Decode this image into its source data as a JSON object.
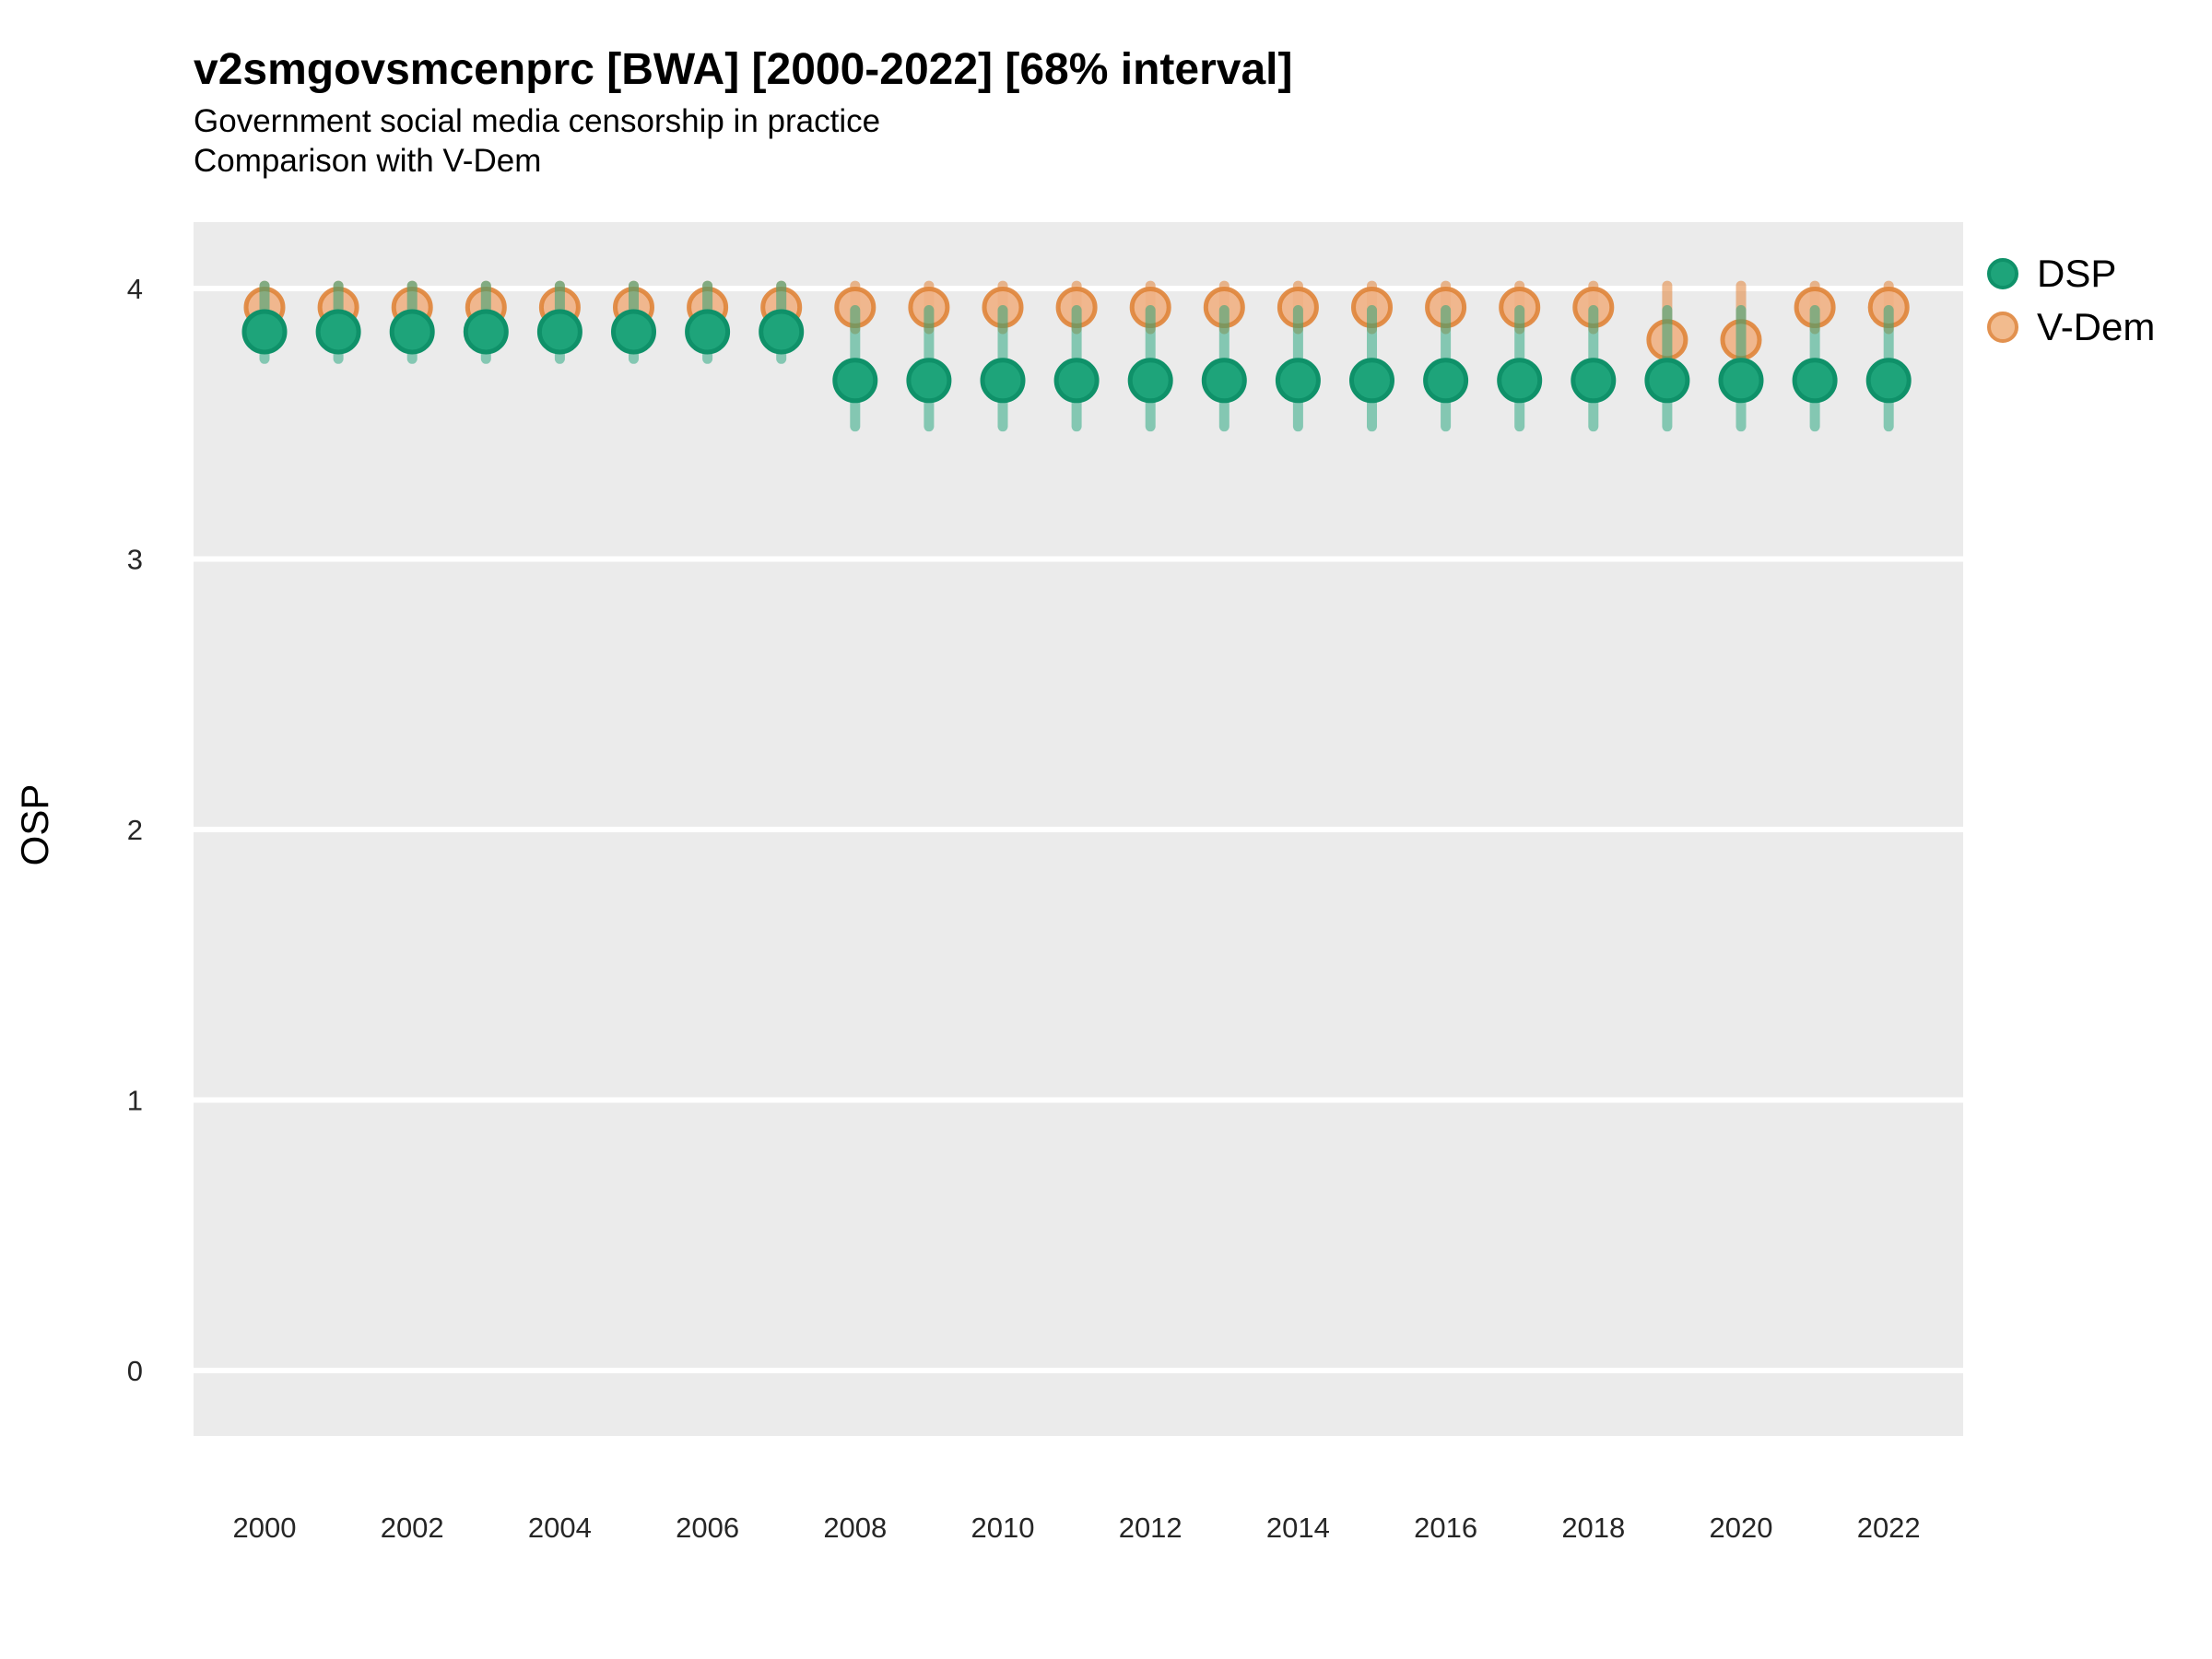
{
  "title": "v2smgovsmcenprc [BWA] [2000-2022] [68% interval]",
  "subtitle1": "Government social media censorship in practice",
  "subtitle2": "Comparison with V-Dem",
  "colors": {
    "panel_background": "#ebebeb",
    "gridline": "#ffffff",
    "dsp_fill": "#1ea47a",
    "dsp_stroke": "#0f9169",
    "dsp_interval": "rgba(30,164,122,0.5)",
    "vdem_fill": "rgba(240,178,134,0.92)",
    "vdem_stroke": "rgba(224,134,60,0.92)",
    "vdem_interval": "rgba(226,140,72,0.6)",
    "tick_text": "#262626"
  },
  "chart_data": {
    "type": "scatter",
    "subtype": "pointrange",
    "title": "v2smgovsmcenprc [BWA] [2000-2022] [68% interval]",
    "subtitle": [
      "Government social media censorship in practice",
      "Comparison with V-Dem"
    ],
    "xlabel": "",
    "ylabel": "OSP",
    "interval": "68%",
    "grid": "major-only",
    "legend_position": "right",
    "legend": [
      "DSP",
      "V-Dem"
    ],
    "xticks": [
      2000,
      2002,
      2004,
      2006,
      2008,
      2010,
      2012,
      2014,
      2016,
      2018,
      2020,
      2022
    ],
    "yticks": [
      0,
      1,
      2,
      3,
      4
    ],
    "xlim": [
      1999,
      2023.1
    ],
    "ylim": [
      -0.24,
      4.25
    ],
    "series": [
      {
        "name": "DSP",
        "color": "#1ea47a",
        "points": [
          {
            "year": 2000,
            "lo": 3.74,
            "value": 3.84,
            "hi": 4.01
          },
          {
            "year": 2001,
            "lo": 3.74,
            "value": 3.84,
            "hi": 4.01
          },
          {
            "year": 2002,
            "lo": 3.74,
            "value": 3.84,
            "hi": 4.01
          },
          {
            "year": 2003,
            "lo": 3.74,
            "value": 3.84,
            "hi": 4.01
          },
          {
            "year": 2004,
            "lo": 3.74,
            "value": 3.84,
            "hi": 4.01
          },
          {
            "year": 2005,
            "lo": 3.74,
            "value": 3.84,
            "hi": 4.01
          },
          {
            "year": 2006,
            "lo": 3.74,
            "value": 3.84,
            "hi": 4.01
          },
          {
            "year": 2007,
            "lo": 3.74,
            "value": 3.84,
            "hi": 4.01
          },
          {
            "year": 2008,
            "lo": 3.49,
            "value": 3.66,
            "hi": 3.92
          },
          {
            "year": 2009,
            "lo": 3.49,
            "value": 3.66,
            "hi": 3.92
          },
          {
            "year": 2010,
            "lo": 3.49,
            "value": 3.66,
            "hi": 3.92
          },
          {
            "year": 2011,
            "lo": 3.49,
            "value": 3.66,
            "hi": 3.92
          },
          {
            "year": 2012,
            "lo": 3.49,
            "value": 3.66,
            "hi": 3.92
          },
          {
            "year": 2013,
            "lo": 3.49,
            "value": 3.66,
            "hi": 3.92
          },
          {
            "year": 2014,
            "lo": 3.49,
            "value": 3.66,
            "hi": 3.92
          },
          {
            "year": 2015,
            "lo": 3.49,
            "value": 3.66,
            "hi": 3.92
          },
          {
            "year": 2016,
            "lo": 3.49,
            "value": 3.66,
            "hi": 3.92
          },
          {
            "year": 2017,
            "lo": 3.49,
            "value": 3.66,
            "hi": 3.92
          },
          {
            "year": 2018,
            "lo": 3.49,
            "value": 3.66,
            "hi": 3.92
          },
          {
            "year": 2019,
            "lo": 3.49,
            "value": 3.66,
            "hi": 3.92
          },
          {
            "year": 2020,
            "lo": 3.49,
            "value": 3.66,
            "hi": 3.92
          },
          {
            "year": 2021,
            "lo": 3.49,
            "value": 3.66,
            "hi": 3.92
          },
          {
            "year": 2022,
            "lo": 3.49,
            "value": 3.66,
            "hi": 3.92
          }
        ]
      },
      {
        "name": "V-Dem",
        "color": "#e28c48",
        "points": [
          {
            "year": 2000,
            "lo": 3.85,
            "value": 3.93,
            "hi": 4.01
          },
          {
            "year": 2001,
            "lo": 3.85,
            "value": 3.93,
            "hi": 4.01
          },
          {
            "year": 2002,
            "lo": 3.85,
            "value": 3.93,
            "hi": 4.01
          },
          {
            "year": 2003,
            "lo": 3.85,
            "value": 3.93,
            "hi": 4.01
          },
          {
            "year": 2004,
            "lo": 3.85,
            "value": 3.93,
            "hi": 4.01
          },
          {
            "year": 2005,
            "lo": 3.85,
            "value": 3.93,
            "hi": 4.01
          },
          {
            "year": 2006,
            "lo": 3.85,
            "value": 3.93,
            "hi": 4.01
          },
          {
            "year": 2007,
            "lo": 3.85,
            "value": 3.93,
            "hi": 4.01
          },
          {
            "year": 2008,
            "lo": 3.85,
            "value": 3.93,
            "hi": 4.01
          },
          {
            "year": 2009,
            "lo": 3.85,
            "value": 3.93,
            "hi": 4.01
          },
          {
            "year": 2010,
            "lo": 3.85,
            "value": 3.93,
            "hi": 4.01
          },
          {
            "year": 2011,
            "lo": 3.85,
            "value": 3.93,
            "hi": 4.01
          },
          {
            "year": 2012,
            "lo": 3.85,
            "value": 3.93,
            "hi": 4.01
          },
          {
            "year": 2013,
            "lo": 3.85,
            "value": 3.93,
            "hi": 4.01
          },
          {
            "year": 2014,
            "lo": 3.85,
            "value": 3.93,
            "hi": 4.01
          },
          {
            "year": 2015,
            "lo": 3.85,
            "value": 3.93,
            "hi": 4.01
          },
          {
            "year": 2016,
            "lo": 3.85,
            "value": 3.93,
            "hi": 4.01
          },
          {
            "year": 2017,
            "lo": 3.85,
            "value": 3.93,
            "hi": 4.01
          },
          {
            "year": 2018,
            "lo": 3.85,
            "value": 3.93,
            "hi": 4.01
          },
          {
            "year": 2019,
            "lo": 3.7,
            "value": 3.81,
            "hi": 4.01
          },
          {
            "year": 2020,
            "lo": 3.7,
            "value": 3.81,
            "hi": 4.01
          },
          {
            "year": 2021,
            "lo": 3.85,
            "value": 3.93,
            "hi": 4.01
          },
          {
            "year": 2022,
            "lo": 3.85,
            "value": 3.93,
            "hi": 4.01
          }
        ]
      }
    ]
  }
}
